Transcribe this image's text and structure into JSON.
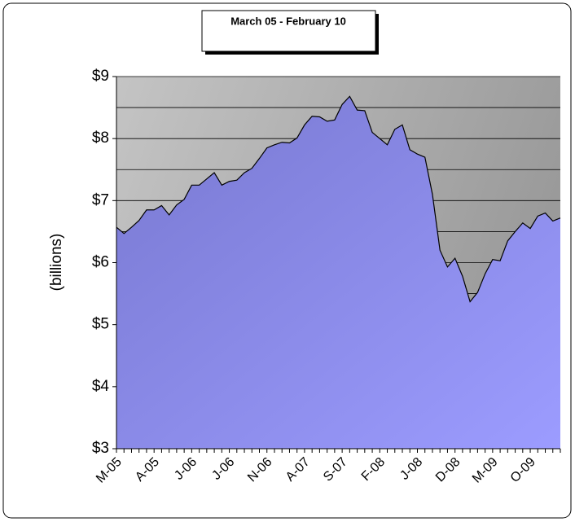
{
  "chart_data": {
    "type": "area",
    "title": "March  05 - February 10",
    "y_label": "(billions)",
    "categories": [
      "M-05",
      null,
      null,
      null,
      null,
      "A-05",
      null,
      null,
      null,
      null,
      "J-06",
      null,
      null,
      null,
      null,
      "J-06",
      null,
      null,
      null,
      null,
      "N-06",
      null,
      null,
      null,
      null,
      "A-07",
      null,
      null,
      null,
      null,
      "S-07",
      null,
      null,
      null,
      null,
      "F-08",
      null,
      null,
      null,
      null,
      "J-08",
      null,
      null,
      null,
      null,
      "D-08",
      null,
      null,
      null,
      null,
      "M-09",
      null,
      null,
      null,
      null,
      "O-09",
      null,
      null,
      null,
      null
    ],
    "values": [
      6.57,
      6.47,
      6.57,
      6.68,
      6.85,
      6.85,
      6.92,
      6.77,
      6.93,
      7.02,
      7.25,
      7.25,
      7.35,
      7.45,
      7.25,
      7.31,
      7.33,
      7.45,
      7.52,
      7.68,
      7.85,
      7.9,
      7.94,
      7.93,
      8.01,
      8.22,
      8.36,
      8.35,
      8.28,
      8.3,
      8.55,
      8.68,
      8.46,
      8.45,
      8.1,
      8.0,
      7.9,
      8.15,
      8.22,
      7.82,
      7.75,
      7.7,
      7.1,
      6.2,
      5.93,
      6.07,
      5.78,
      5.37,
      5.52,
      5.82,
      6.05,
      6.03,
      6.35,
      6.5,
      6.64,
      6.55,
      6.75,
      6.8,
      6.67,
      6.72
    ],
    "color": "#8a8ae8",
    "ylim": [
      3,
      9
    ],
    "yticks": [
      {
        "value": 3,
        "label": "$3"
      },
      {
        "value": 4,
        "label": "$4"
      },
      {
        "value": 5,
        "label": "$5"
      },
      {
        "value": 6,
        "label": "$6"
      },
      {
        "value": 7,
        "label": "$7"
      },
      {
        "value": 8,
        "label": "$8"
      },
      {
        "value": 9,
        "label": "$9"
      }
    ],
    "ygrid": [
      3,
      3.5,
      4,
      4.5,
      5,
      5.5,
      6,
      6.5,
      7,
      7.5,
      8,
      8.5,
      9
    ]
  }
}
